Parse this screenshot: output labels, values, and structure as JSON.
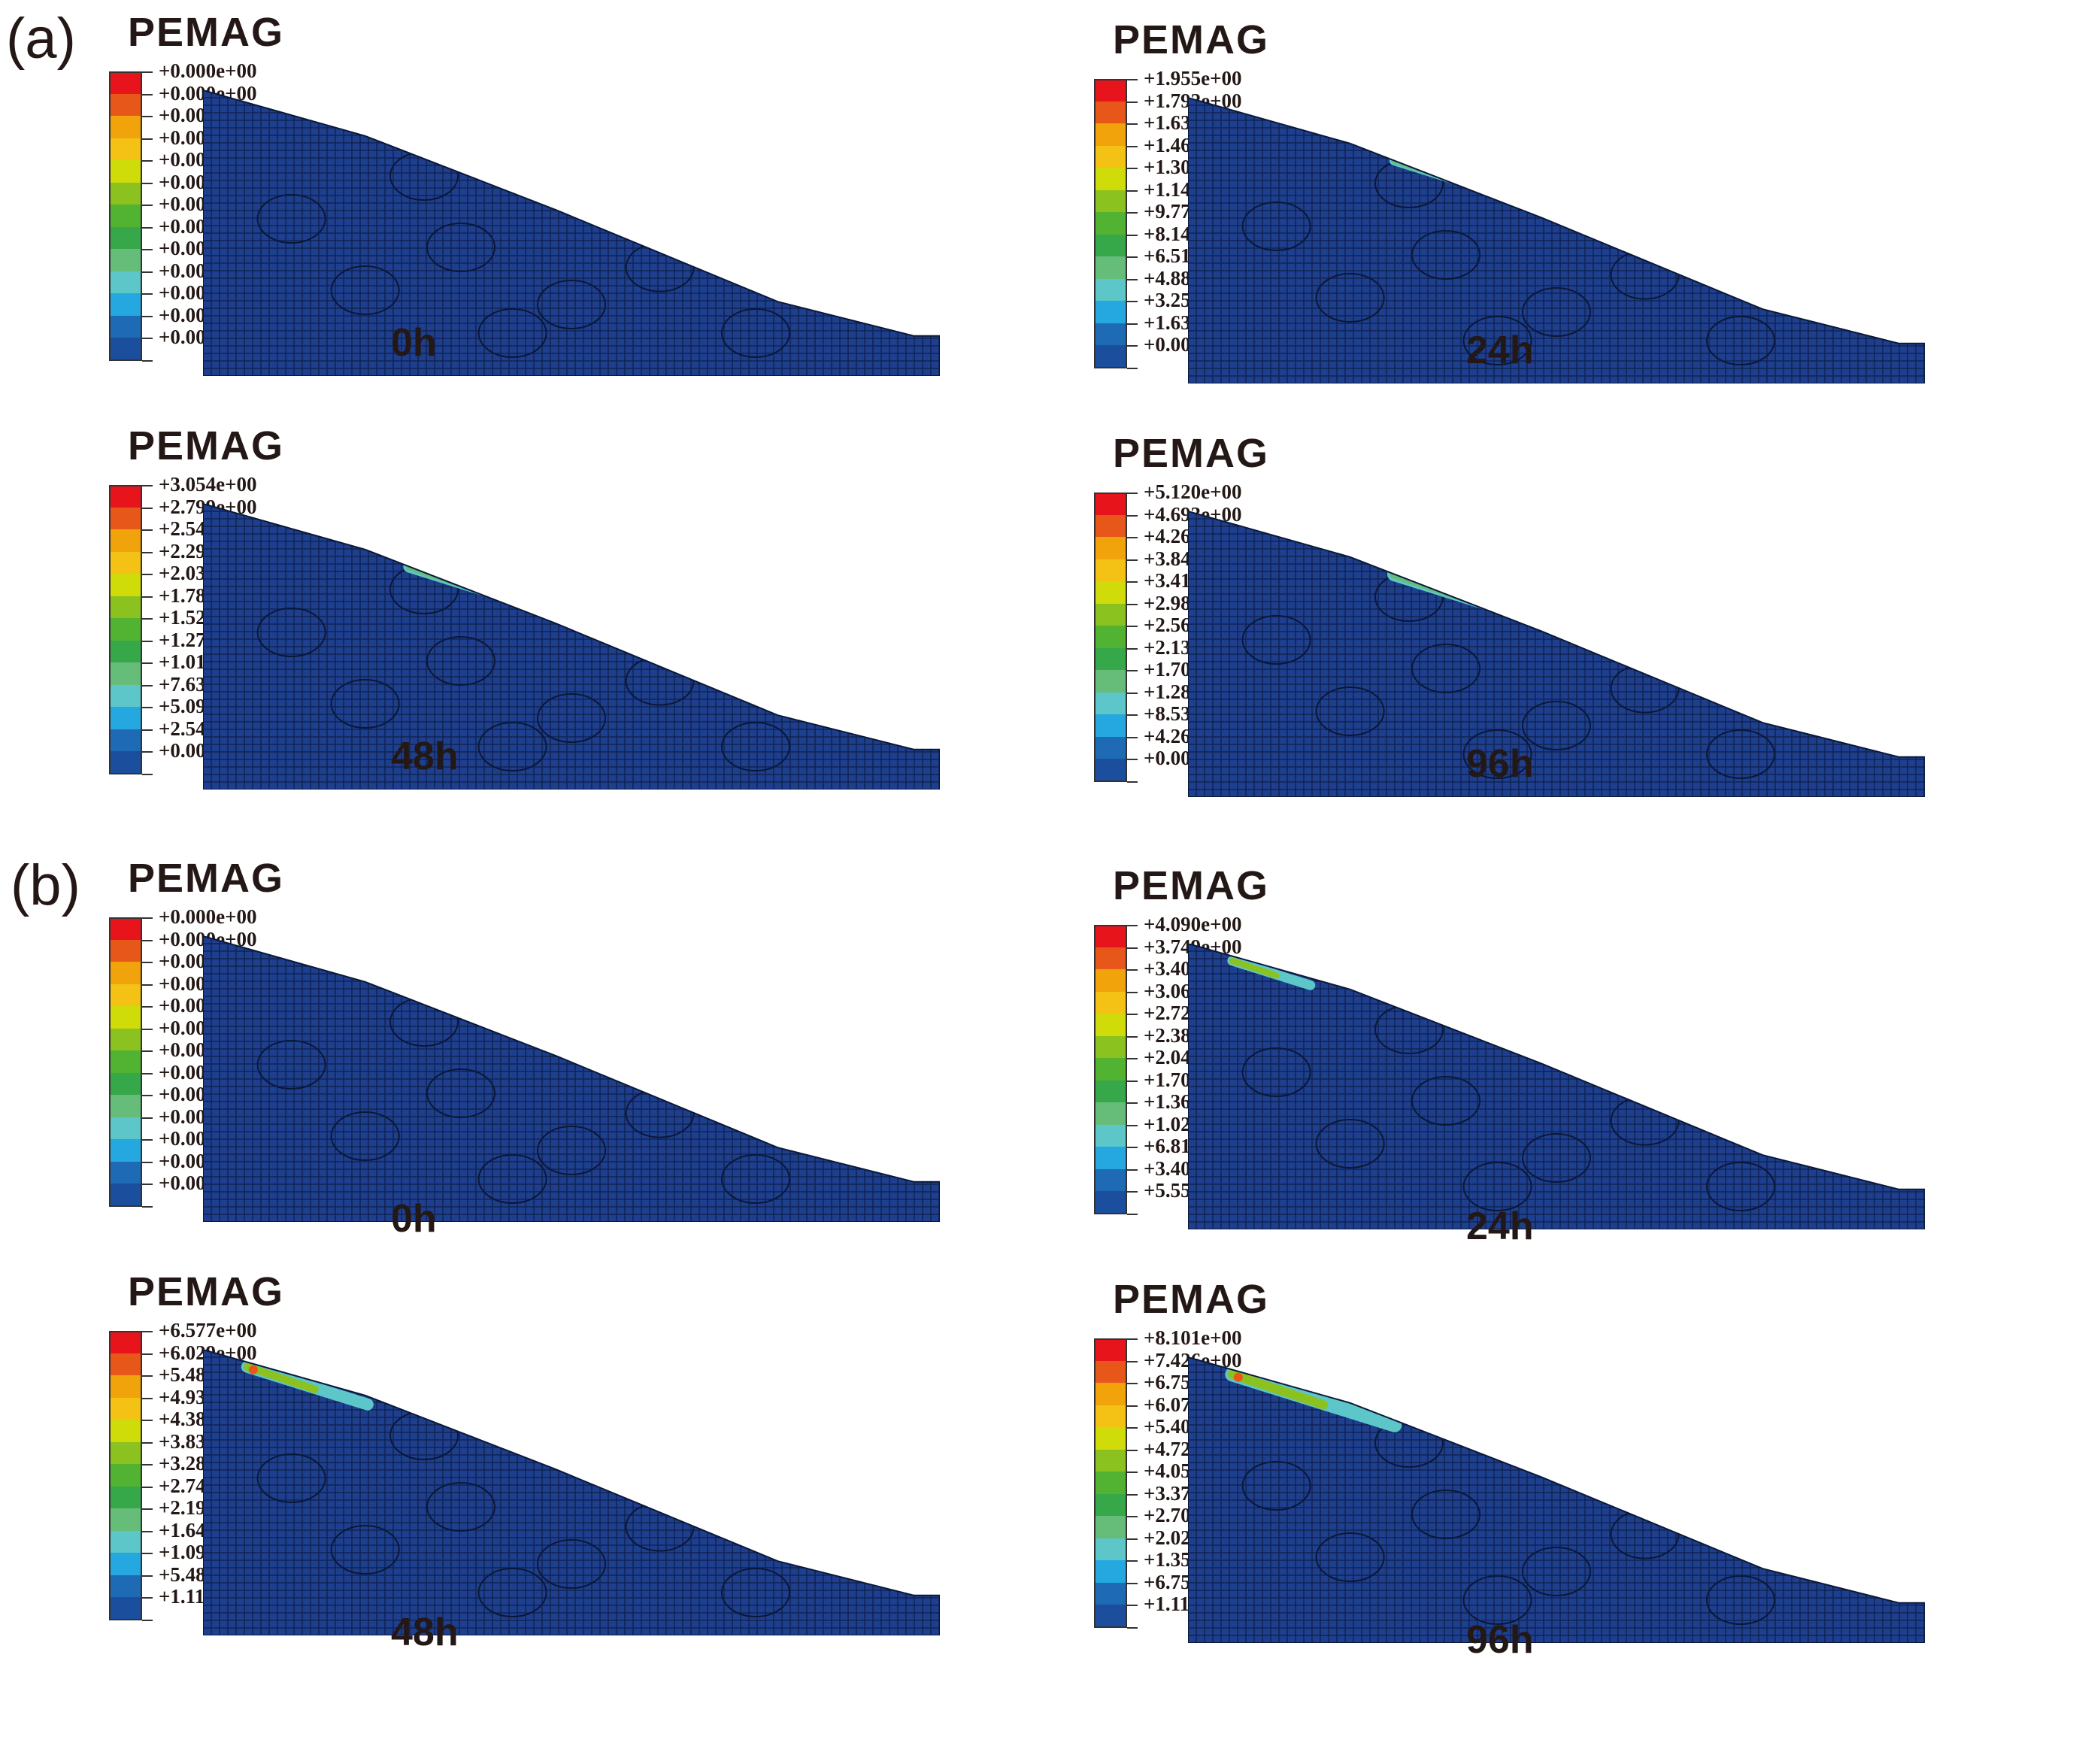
{
  "figure": {
    "variable": "PEMAG",
    "colors": [
      "#e8141c",
      "#e8571a",
      "#f0a30a",
      "#f4c214",
      "#cfdc0a",
      "#8cc21f",
      "#52b232",
      "#36a84a",
      "#66bd7a",
      "#5cc6c8",
      "#25a8e0",
      "#1e6ab4",
      "#1c4e9e"
    ],
    "mesh_color": "#1e3f8e",
    "sections": [
      {
        "label": "(a)",
        "panels": [
          {
            "time": "0h",
            "title": "PEMAG",
            "levels": [
              "+0.000e+00",
              "+0.000e+00",
              "+0.000e+00",
              "+0.000e+00",
              "+0.000e+00",
              "+0.000e+00",
              "+0.000e+00",
              "+0.000e+00",
              "+0.000e+00",
              "+0.000e+00",
              "+0.000e+00",
              "+0.000e+00",
              "+0.000e+00"
            ]
          },
          {
            "time": "24h",
            "title": "PEMAG",
            "levels": [
              "+1.955e+00",
              "+1.792e+00",
              "+1.630e+00",
              "+1.467e+00",
              "+1.304e+00",
              "+1.141e+00",
              "+9.777e-01",
              "+8.148e-01",
              "+6.518e-01",
              "+4.889e-01",
              "+3.259e-01",
              "+1.630e-01",
              "+0.000e+00"
            ]
          },
          {
            "time": "48h",
            "title": "PEMAG",
            "levels": [
              "+3.054e+00",
              "+2.799e+00",
              "+2.545e+00",
              "+2.290e+00",
              "+2.036e+00",
              "+1.781e+00",
              "+1.527e+00",
              "+1.272e+00",
              "+1.018e+00",
              "+7.635e-01",
              "+5.090e-01",
              "+2.545e-01",
              "+0.000e+00"
            ]
          },
          {
            "time": "96h",
            "title": "PEMAG",
            "levels": [
              "+5.120e+00",
              "+4.693e+00",
              "+4.267e+00",
              "+3.840e+00",
              "+3.413e+00",
              "+2.987e+00",
              "+2.560e+00",
              "+2.133e+00",
              "+1.707e+00",
              "+1.280e+00",
              "+8.533e-01",
              "+4.267e-01",
              "+0.000e+00"
            ]
          }
        ]
      },
      {
        "label": "(b)",
        "panels": [
          {
            "time": "0h",
            "title": "PEMAG",
            "levels": [
              "+0.000e+00",
              "+0.000e+00",
              "+0.000e+00",
              "+0.000e+00",
              "+0.000e+00",
              "+0.000e+00",
              "+0.000e+00",
              "+0.000e+00",
              "+0.000e+00",
              "+0.000e+00",
              "+0.000e+00",
              "+0.000e+00",
              "+0.000e+00"
            ]
          },
          {
            "time": "24h",
            "title": "PEMAG",
            "levels": [
              "+4.090e+00",
              "+3.749e+00",
              "+3.408e+00",
              "+3.068e+00",
              "+2.727e+00",
              "+2.386e+00",
              "+2.045e+00",
              "+1.704e+00",
              "+1.363e+00",
              "+1.023e+00",
              "+6.817e-01",
              "+3.408e-01",
              "+5.550e-17"
            ]
          },
          {
            "time": "48h",
            "title": "PEMAG",
            "levels": [
              "+6.577e+00",
              "+6.029e+00",
              "+5.481e+00",
              "+4.933e+00",
              "+4.385e+00",
              "+3.837e+00",
              "+3.289e+00",
              "+2.740e+00",
              "+2.192e+00",
              "+1.644e+00",
              "+1.096e+00",
              "+5.481e-01",
              "+1.110e-16"
            ]
          },
          {
            "time": "96h",
            "title": "PEMAG",
            "levels": [
              "+8.101e+00",
              "+7.426e+00",
              "+6.751e+00",
              "+6.076e+00",
              "+5.401e+00",
              "+4.726e+00",
              "+4.051e+00",
              "+3.376e+00",
              "+2.700e+00",
              "+2.025e+00",
              "+1.350e+00",
              "+6.751e-01",
              "+1.110e-16"
            ]
          }
        ]
      }
    ]
  }
}
